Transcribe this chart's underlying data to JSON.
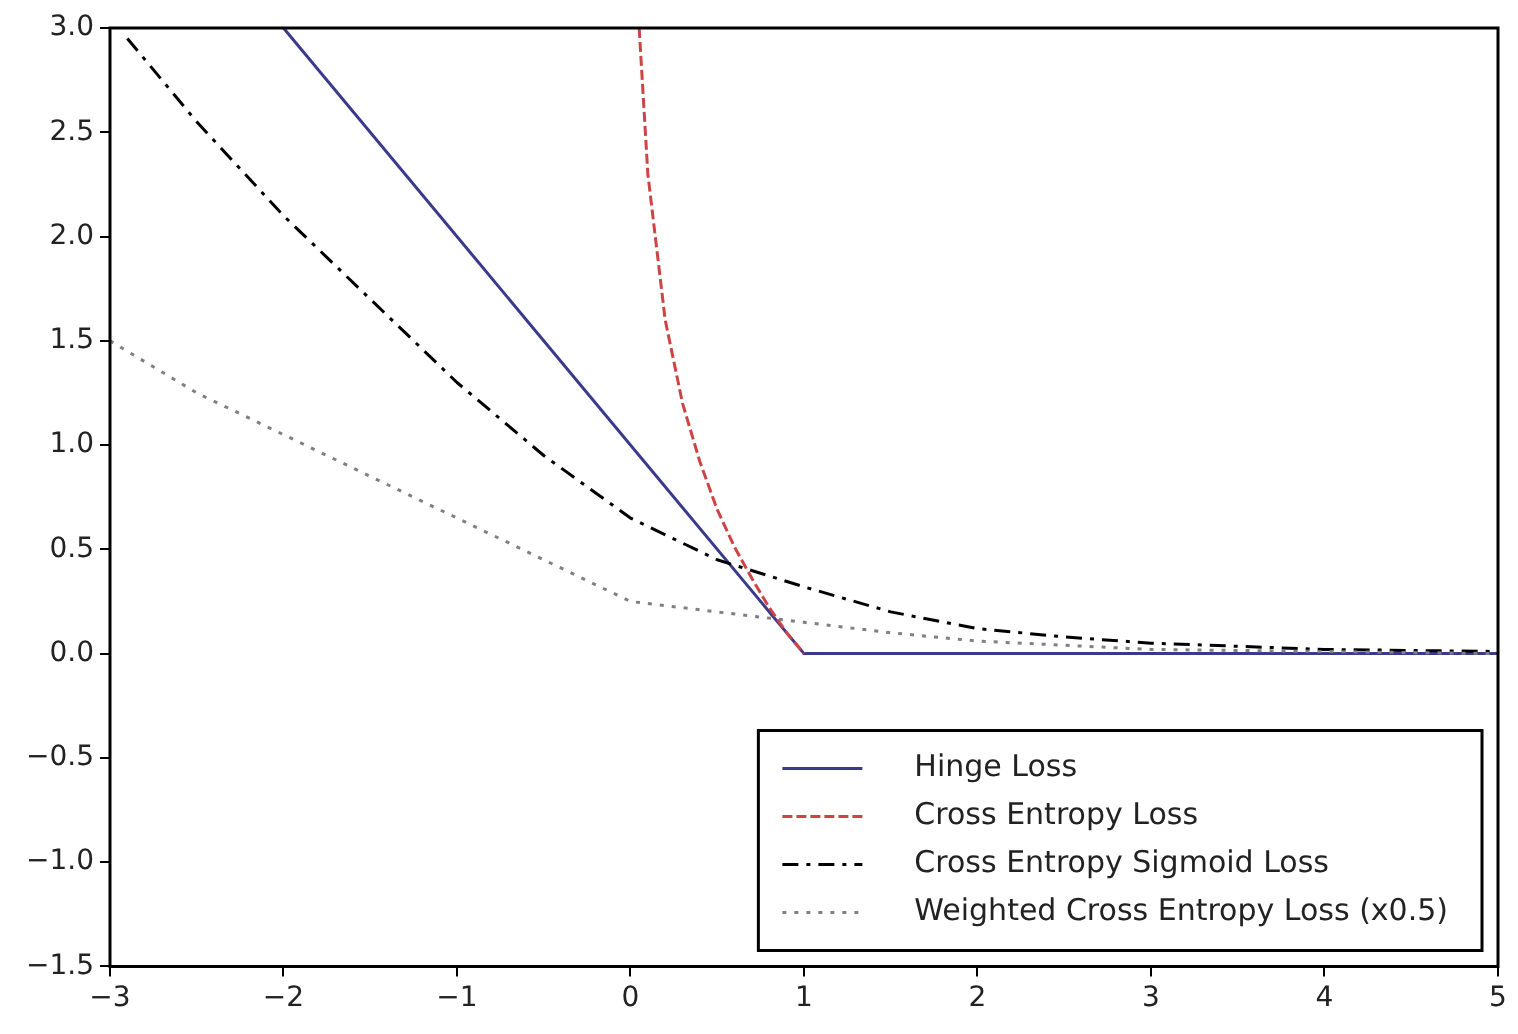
{
  "chart_data": {
    "type": "line",
    "xlim": [
      -3,
      5
    ],
    "ylim": [
      -1.5,
      3.0
    ],
    "xticks": [
      {
        "value": -3,
        "label": "−3"
      },
      {
        "value": -2,
        "label": "−2"
      },
      {
        "value": -1,
        "label": "−1"
      },
      0,
      1,
      2,
      3,
      4,
      5
    ],
    "yticks": [
      {
        "value": -1.5,
        "label": "−1.5"
      },
      {
        "value": -1.0,
        "label": "−1.0"
      },
      {
        "value": -0.5,
        "label": "−0.5"
      },
      {
        "value": 0,
        "label": "0.0"
      },
      {
        "value": 0.5,
        "label": "0.5"
      },
      {
        "value": 1.0,
        "label": "1.0"
      },
      {
        "value": 1.5,
        "label": "1.5"
      },
      {
        "value": 2.0,
        "label": "2.0"
      },
      {
        "value": 2.5,
        "label": "2.5"
      },
      {
        "value": 3.0,
        "label": "3.0"
      }
    ],
    "grid": false,
    "legend": "bottom right",
    "marker": "none",
    "series": [
      {
        "name": "Hinge Loss",
        "color": "#3a3a8c",
        "line_style": "solid",
        "x": [
          -2,
          1,
          5
        ],
        "values": [
          3.0,
          0,
          0
        ]
      },
      {
        "name": "Cross Entropy Loss",
        "color": "#cc4444",
        "line_style": "dashed",
        "x": [
          0.05,
          0.1,
          0.2,
          0.3,
          0.4,
          0.5,
          0.6,
          0.7,
          0.8,
          0.9,
          1.0
        ],
        "values": [
          3.0,
          2.3,
          1.6,
          1.2,
          0.92,
          0.69,
          0.51,
          0.36,
          0.22,
          0.1,
          0
        ]
      },
      {
        "name": "Cross Entropy Sigmoid Loss",
        "color": "#000000",
        "line_style": "dashdot",
        "x": [
          -2.9,
          -2.5,
          -2,
          -1.5,
          -1,
          -0.5,
          0,
          0.5,
          1,
          1.5,
          2,
          2.5,
          3,
          4,
          5
        ],
        "values": [
          2.95,
          2.55,
          2.1,
          1.7,
          1.3,
          0.95,
          0.65,
          0.45,
          0.32,
          0.2,
          0.12,
          0.08,
          0.05,
          0.02,
          0.01
        ]
      },
      {
        "name": "Weighted Cross Entropy Loss (x0.5)",
        "color": "#808080",
        "line_style": "dotted",
        "x": [
          -3,
          -2.5,
          -2,
          -1.5,
          -1,
          -0.5,
          0,
          0.5,
          1,
          1.5,
          2,
          3,
          4,
          5
        ],
        "values": [
          1.5,
          1.25,
          1.05,
          0.85,
          0.65,
          0.45,
          0.25,
          0.2,
          0.15,
          0.1,
          0.06,
          0.02,
          0.01,
          0
        ]
      }
    ]
  }
}
